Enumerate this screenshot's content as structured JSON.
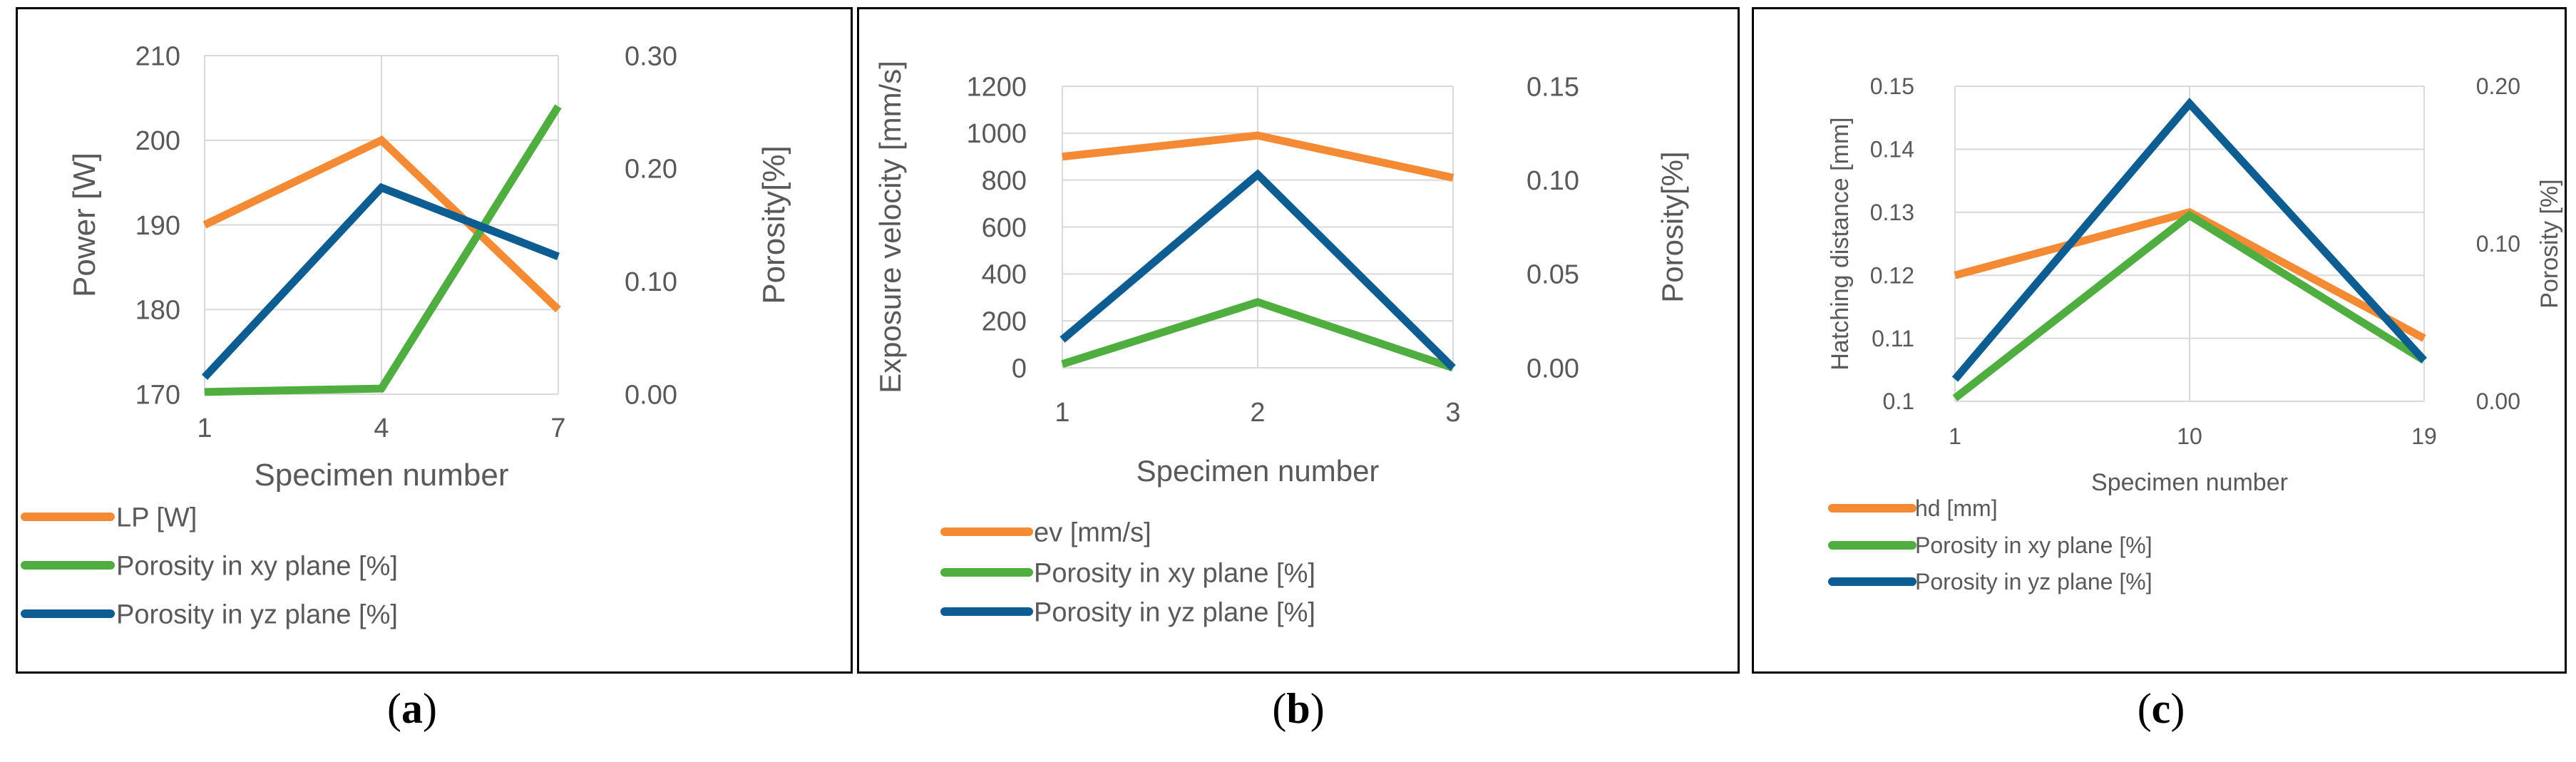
{
  "colors": {
    "orange": "#F58A35",
    "green": "#4FAE3F",
    "blue": "#0E5D92",
    "grid": "#D9D9D9",
    "tick": "#595959"
  },
  "captions": [
    {
      "open": "(",
      "letter": "a",
      "close": ")"
    },
    {
      "open": "(",
      "letter": "b",
      "close": ")"
    },
    {
      "open": "(",
      "letter": "c",
      "close": ")"
    }
  ],
  "chart_data": [
    {
      "type": "line",
      "panel": "a",
      "xlabel": "Specimen number",
      "ylabel": "Power [W]",
      "y2label": "Porosity[%]",
      "categories": [
        "1",
        "4",
        "7"
      ],
      "ylim": [
        170,
        210
      ],
      "yticks": [
        "170",
        "180",
        "190",
        "200",
        "210"
      ],
      "y2lim": [
        0,
        0.3
      ],
      "y2ticks": [
        "0.00",
        "0.10",
        "0.20",
        "0.30"
      ],
      "series": [
        {
          "name": "LP [W]",
          "axis": "left",
          "color": "orange",
          "values": [
            190,
            200,
            180
          ]
        },
        {
          "name": "Porosity in xy plane [%]",
          "axis": "right",
          "color": "green",
          "values": [
            0.002,
            0.005,
            0.255
          ]
        },
        {
          "name": "Porosity in yz plane [%]",
          "axis": "right",
          "color": "blue",
          "values": [
            0.015,
            0.183,
            0.122
          ]
        }
      ]
    },
    {
      "type": "line",
      "panel": "b",
      "xlabel": "Specimen number",
      "ylabel": "Exposure velocity [mm/s]",
      "y2label": "Porosity[%]",
      "categories": [
        "1",
        "2",
        "3"
      ],
      "ylim": [
        0,
        1200
      ],
      "yticks": [
        "0",
        "200",
        "400",
        "600",
        "800",
        "1000",
        "1200"
      ],
      "y2lim": [
        0,
        0.15
      ],
      "y2ticks": [
        "0.00",
        "0.05",
        "0.10",
        "0.15"
      ],
      "series": [
        {
          "name": "ev [mm/s]",
          "axis": "left",
          "color": "orange",
          "values": [
            900,
            990,
            810
          ]
        },
        {
          "name": "Porosity in xy plane [%]",
          "axis": "right",
          "color": "green",
          "values": [
            0.002,
            0.035,
            0.0
          ]
        },
        {
          "name": "Porosity in yz plane [%]",
          "axis": "right",
          "color": "blue",
          "values": [
            0.015,
            0.103,
            0.0
          ]
        }
      ]
    },
    {
      "type": "line",
      "panel": "c",
      "xlabel": "Specimen number",
      "ylabel": "Hatching distance [mm]",
      "y2label": "Porosity [%]",
      "categories": [
        "1",
        "10",
        "19"
      ],
      "ylim": [
        0.1,
        0.15
      ],
      "yticks": [
        "0.1",
        "0.11",
        "0.12",
        "0.13",
        "0.14",
        "0.15"
      ],
      "y2lim": [
        0,
        0.2
      ],
      "y2ticks": [
        "0.00",
        "0.10",
        "0.20"
      ],
      "series": [
        {
          "name": "hd [mm]",
          "axis": "left",
          "color": "orange",
          "values": [
            0.12,
            0.13,
            0.11
          ]
        },
        {
          "name": "Porosity in xy plane [%]",
          "axis": "right",
          "color": "green",
          "values": [
            0.002,
            0.118,
            0.026
          ]
        },
        {
          "name": "Porosity in yz plane [%]",
          "axis": "right",
          "color": "blue",
          "values": [
            0.014,
            0.189,
            0.026
          ]
        }
      ]
    }
  ]
}
